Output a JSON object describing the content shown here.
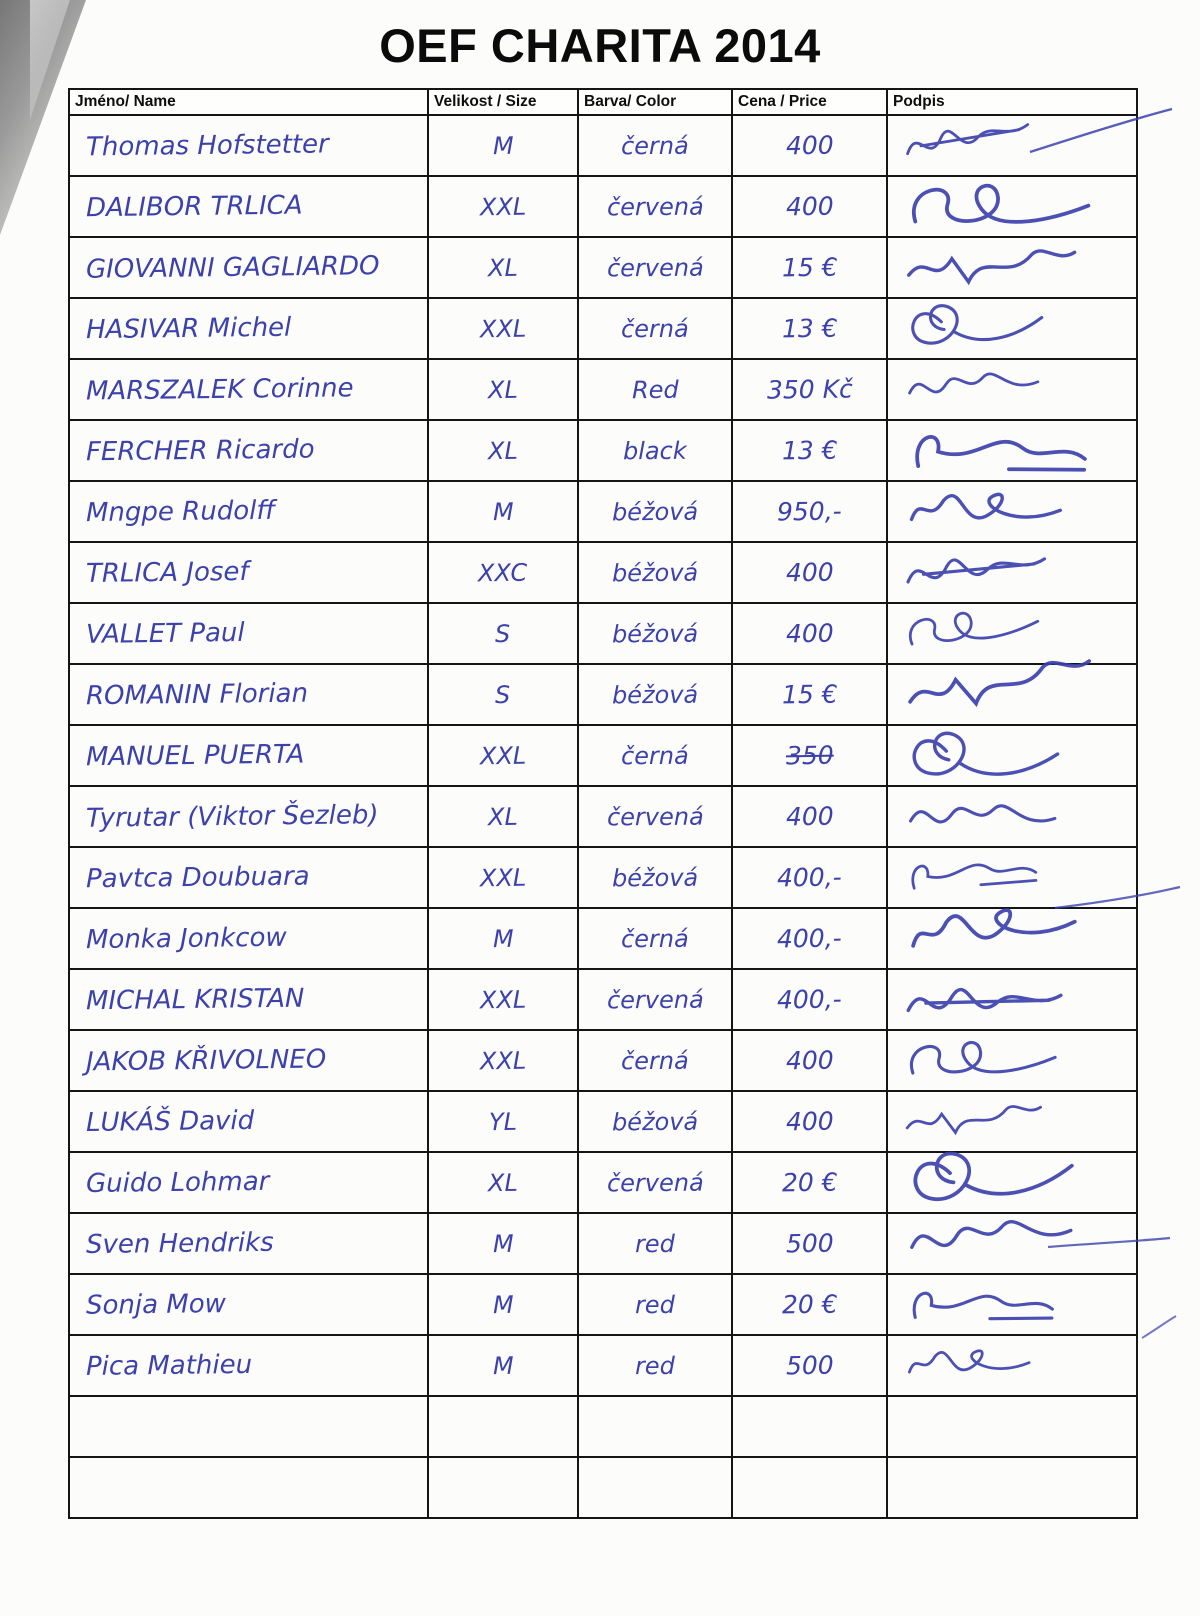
{
  "title": "OEF CHARITA 2014",
  "ink_color": "#3c41ab",
  "table": {
    "headers": [
      "Jméno/ Name",
      "Velikost / Size",
      "Barva/ Color",
      "Cena / Price",
      "Podpis"
    ],
    "rows": [
      {
        "name": "Thomas Hofstetter",
        "size": "M",
        "color": "černá",
        "price": "400",
        "signature": true,
        "struck": false
      },
      {
        "name": "DALIBOR TRLICA",
        "size": "XXL",
        "color": "červená",
        "price": "400",
        "signature": true,
        "struck": false
      },
      {
        "name": "GIOVANNI GAGLIARDO",
        "size": "XL",
        "color": "červená",
        "price": "15 €",
        "signature": true,
        "struck": false
      },
      {
        "name": "HASIVAR Michel",
        "size": "XXL",
        "color": "černá",
        "price": "13 €",
        "signature": true,
        "struck": false
      },
      {
        "name": "MARSZALEK Corinne",
        "size": "XL",
        "color": "Red",
        "price": "350 Kč",
        "signature": true,
        "struck": false
      },
      {
        "name": "FERCHER Ricardo",
        "size": "XL",
        "color": "black",
        "price": "13 €",
        "signature": true,
        "struck": false
      },
      {
        "name": "Mngpe Rudolff",
        "size": "M",
        "color": "béžová",
        "price": "950,-",
        "signature": true,
        "struck": false
      },
      {
        "name": "TRLICA Josef",
        "size": "XXC",
        "color": "béžová",
        "price": "400",
        "signature": true,
        "struck": false
      },
      {
        "name": "VALLET Paul",
        "size": "S",
        "color": "béžová",
        "price": "400",
        "signature": true,
        "struck": false
      },
      {
        "name": "ROMANIN Florian",
        "size": "S",
        "color": "béžová",
        "price": "15 €",
        "signature": true,
        "struck": false
      },
      {
        "name": "MANUEL PUERTA",
        "size": "XXL",
        "color": "černá",
        "price": "350",
        "signature": true,
        "struck": true
      },
      {
        "name": "Tyrutar (Viktor Šezleb)",
        "size": "XL",
        "color": "červená",
        "price": "400",
        "signature": true,
        "struck": false
      },
      {
        "name": "Pavtca Doubuara",
        "size": "XXL",
        "color": "béžová",
        "price": "400,-",
        "signature": true,
        "struck": false
      },
      {
        "name": "Monka Jonkcow",
        "size": "M",
        "color": "černá",
        "price": "400,-",
        "signature": true,
        "struck": false
      },
      {
        "name": "MICHAL KRISTAN",
        "size": "XXL",
        "color": "červená",
        "price": "400,-",
        "signature": true,
        "struck": false
      },
      {
        "name": "JAKOB KŘIVOLNEO",
        "size": "XXL",
        "color": "černá",
        "price": "400",
        "signature": true,
        "struck": false
      },
      {
        "name": "LUKÁŠ David",
        "size": "YL",
        "color": "béžová",
        "price": "400",
        "signature": true,
        "struck": false
      },
      {
        "name": "Guido Lohmar",
        "size": "XL",
        "color": "červená",
        "price": "20 €",
        "signature": true,
        "struck": false
      },
      {
        "name": "Sven Hendriks",
        "size": "M",
        "color": "red",
        "price": "500",
        "signature": true,
        "struck": false
      },
      {
        "name": "Sonja Mow",
        "size": "M",
        "color": "red",
        "price": "20 €",
        "signature": true,
        "struck": false
      },
      {
        "name": "Pica Mathieu",
        "size": "M",
        "color": "red",
        "price": "500",
        "signature": true,
        "struck": false
      },
      {
        "name": "",
        "size": "",
        "color": "",
        "price": "",
        "signature": false,
        "struck": false
      },
      {
        "name": "",
        "size": "",
        "color": "",
        "price": "",
        "signature": false,
        "struck": false
      }
    ]
  }
}
